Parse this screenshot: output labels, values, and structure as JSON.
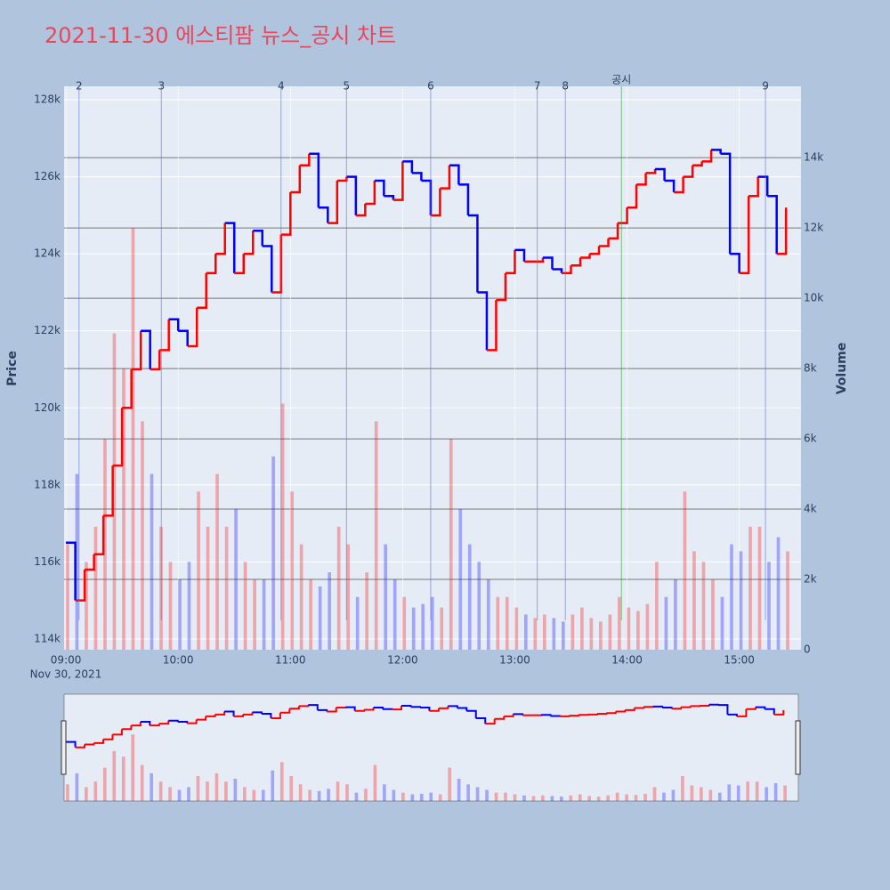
{
  "chart_data": {
    "type": "candlestick",
    "title": "2021-11-30 에스티팜 뉴스_공시 차트",
    "y_label": "Price",
    "y2_label": "Volume",
    "date_label": "Nov 30, 2021",
    "up_color": "#ff0000",
    "down_color": "#0000ff",
    "grid": true,
    "x": [
      "09:00",
      "09:05",
      "09:10",
      "09:15",
      "09:20",
      "09:25",
      "09:30",
      "09:35",
      "09:40",
      "09:45",
      "09:50",
      "09:55",
      "10:00",
      "10:05",
      "10:10",
      "10:15",
      "10:20",
      "10:25",
      "10:30",
      "10:35",
      "10:40",
      "10:45",
      "10:50",
      "10:55",
      "11:00",
      "11:05",
      "11:10",
      "11:15",
      "11:20",
      "11:25",
      "11:30",
      "11:35",
      "11:40",
      "11:45",
      "11:50",
      "11:55",
      "12:00",
      "12:05",
      "12:10",
      "12:15",
      "12:20",
      "12:25",
      "12:30",
      "12:35",
      "12:40",
      "12:45",
      "12:50",
      "12:55",
      "13:00",
      "13:05",
      "13:10",
      "13:15",
      "13:20",
      "13:25",
      "13:30",
      "13:35",
      "13:40",
      "13:45",
      "13:50",
      "13:55",
      "14:00",
      "14:05",
      "14:10",
      "14:15",
      "14:20",
      "14:25",
      "14:30",
      "14:35",
      "14:40",
      "14:45",
      "14:50",
      "14:55",
      "15:00",
      "15:05",
      "15:10",
      "15:15",
      "15:20",
      "15:25"
    ],
    "series": [
      {
        "name": "Price",
        "values": [
          116500,
          115000,
          115800,
          116200,
          117200,
          118500,
          120000,
          121000,
          122000,
          121000,
          121500,
          122300,
          122000,
          121600,
          122600,
          123500,
          124000,
          124800,
          123500,
          124000,
          124600,
          124200,
          123000,
          124500,
          125600,
          126300,
          126600,
          125200,
          124800,
          125900,
          126000,
          125000,
          125300,
          125900,
          125500,
          125400,
          126400,
          126100,
          125900,
          125000,
          125700,
          126300,
          125800,
          125000,
          123000,
          121500,
          122800,
          123500,
          124100,
          123800,
          123800,
          123900,
          123600,
          123500,
          123700,
          123900,
          124000,
          124200,
          124400,
          124800,
          125200,
          125800,
          126100,
          126200,
          125900,
          125600,
          126000,
          126300,
          126400,
          126700,
          126600,
          124000,
          123500,
          125500,
          126000,
          125500,
          124000,
          125200
        ]
      },
      {
        "name": "Volume",
        "axis": "y2",
        "values": [
          3000,
          5000,
          2500,
          3500,
          6000,
          9000,
          8000,
          12000,
          6500,
          5000,
          3500,
          2500,
          2000,
          2500,
          4500,
          3500,
          5000,
          3500,
          4000,
          2500,
          2000,
          2000,
          5500,
          7000,
          4500,
          3000,
          2000,
          1800,
          2200,
          3500,
          3000,
          1500,
          2200,
          6500,
          3000,
          2000,
          1500,
          1200,
          1300,
          1500,
          1200,
          6000,
          4000,
          3000,
          2500,
          2000,
          1500,
          1500,
          1200,
          1000,
          900,
          1000,
          900,
          800,
          1000,
          1200,
          900,
          800,
          1000,
          1500,
          1200,
          1100,
          1300,
          2500,
          1500,
          2000,
          4500,
          2800,
          2500,
          2000,
          1500,
          3000,
          2800,
          3500,
          3500,
          2500,
          3200,
          2800
        ]
      }
    ],
    "xlim": [
      "08:59",
      "15:33"
    ],
    "xticks": [
      "09:00",
      "10:00",
      "11:00",
      "12:00",
      "13:00",
      "14:00",
      "15:00"
    ],
    "ylim": [
      113720,
      128350
    ],
    "yticks": [
      {
        "value": 114000,
        "label": "114k"
      },
      {
        "value": 116000,
        "label": "116k"
      },
      {
        "value": 118000,
        "label": "118k"
      },
      {
        "value": 120000,
        "label": "120k"
      },
      {
        "value": 122000,
        "label": "122k"
      },
      {
        "value": 124000,
        "label": "124k"
      },
      {
        "value": 126000,
        "label": "126k"
      },
      {
        "value": 128000,
        "label": "128k"
      }
    ],
    "y2lim": [
      0,
      16030
    ],
    "y2ticks": [
      0,
      {
        "value": 2000,
        "label": "2k"
      },
      {
        "value": 4000,
        "label": "4k"
      },
      {
        "value": 6000,
        "label": "6k"
      },
      {
        "value": 8000,
        "label": "8k"
      },
      {
        "value": 10000,
        "label": "10k"
      },
      {
        "value": 12000,
        "label": "12k"
      },
      {
        "value": 14000,
        "label": "14k"
      }
    ],
    "annotations": [
      {
        "x": "09:07",
        "text": "2",
        "color": "#5b6fe0"
      },
      {
        "x": "09:51",
        "text": "3",
        "color": "#5b6fe0"
      },
      {
        "x": "10:55",
        "text": "4",
        "color": "#5b6fe0"
      },
      {
        "x": "11:30",
        "text": "5",
        "color": "#5b6fe0"
      },
      {
        "x": "12:15",
        "text": "6",
        "color": "#5b6fe0"
      },
      {
        "x": "13:12",
        "text": "7",
        "color": "#5b6fe0"
      },
      {
        "x": "13:27",
        "text": "8",
        "color": "#5b6fe0"
      },
      {
        "x": "13:57",
        "text": "공시",
        "color": "#2ca02c"
      },
      {
        "x": "15:14",
        "text": "9",
        "color": "#5b6fe0"
      }
    ]
  }
}
